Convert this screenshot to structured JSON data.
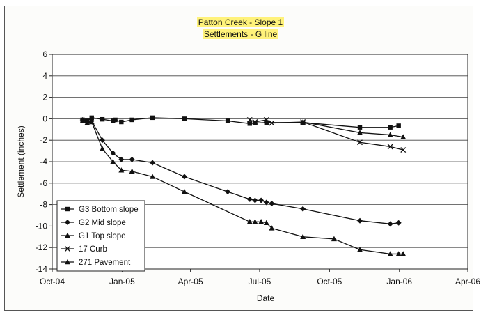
{
  "chart_data": {
    "type": "line",
    "title": "Patton Creek - Slope 1",
    "subtitle": "Settlements - G line",
    "xlabel": "Date",
    "ylabel": "Settlement (inches)",
    "x_ticks": [
      "Oct-04",
      "Jan-05",
      "Apr-05",
      "Jul-05",
      "Oct-05",
      "Jan-06",
      "Apr-06"
    ],
    "x_range": [
      "2004-10-01",
      "2006-04-01"
    ],
    "ylim": [
      -14,
      6
    ],
    "y_ticks": [
      6,
      4,
      2,
      0,
      -2,
      -4,
      -6,
      -8,
      -10,
      -12,
      -14
    ],
    "grid": "horizontal",
    "legend_position": "bottom-left",
    "series": [
      {
        "name": "G3 Bottom slope",
        "marker": "square",
        "x": [
          "2004-11-10",
          "2004-11-16",
          "2004-11-22",
          "2004-12-06",
          "2004-12-20",
          "2004-12-23",
          "2004-12-31",
          "2005-01-14",
          "2005-02-10",
          "2005-03-24",
          "2005-05-20",
          "2005-06-18",
          "2005-06-25",
          "2005-07-10",
          "2005-08-27",
          "2005-11-10",
          "2005-12-20",
          "2005-12-31"
        ],
        "values": [
          -0.1,
          -0.2,
          0.1,
          -0.05,
          -0.2,
          -0.1,
          -0.3,
          -0.1,
          0.1,
          0.0,
          -0.2,
          -0.45,
          -0.4,
          -0.35,
          -0.35,
          -0.8,
          -0.8,
          -0.65
        ]
      },
      {
        "name": "G2 Mid slope",
        "marker": "diamond",
        "x": [
          "2004-11-10",
          "2004-11-16",
          "2004-11-22",
          "2004-12-06",
          "2004-12-20",
          "2004-12-31",
          "2005-01-14",
          "2005-02-10",
          "2005-03-24",
          "2005-05-20",
          "2005-06-18",
          "2005-06-25",
          "2005-07-03",
          "2005-07-10",
          "2005-07-17",
          "2005-08-27",
          "2005-11-10",
          "2005-12-20",
          "2005-12-31"
        ],
        "values": [
          -0.1,
          -0.3,
          -0.2,
          -2.0,
          -3.2,
          -3.8,
          -3.8,
          -4.1,
          -5.4,
          -6.8,
          -7.5,
          -7.6,
          -7.6,
          -7.8,
          -7.9,
          -8.4,
          -9.5,
          -9.8,
          -9.7
        ]
      },
      {
        "name": "G1 Top slope",
        "marker": "triangle",
        "x": [
          "2004-11-10",
          "2004-11-16",
          "2004-11-22",
          "2004-12-06",
          "2004-12-20",
          "2004-12-31",
          "2005-01-14",
          "2005-02-10",
          "2005-03-24",
          "2005-06-18",
          "2005-06-25",
          "2005-07-03",
          "2005-07-10",
          "2005-07-17",
          "2005-08-27",
          "2005-10-07",
          "2005-11-10",
          "2005-12-20",
          "2005-12-31",
          "2006-01-06"
        ],
        "values": [
          -0.2,
          -0.4,
          -0.3,
          -2.8,
          -4.0,
          -4.8,
          -4.9,
          -5.4,
          -6.8,
          -9.6,
          -9.6,
          -9.6,
          -9.7,
          -10.2,
          -11.0,
          -11.2,
          -12.2,
          -12.6,
          -12.6,
          -12.6
        ]
      },
      {
        "name": "17 Curb",
        "marker": "x",
        "x": [
          "2005-06-18",
          "2005-06-25",
          "2005-07-10",
          "2005-07-17",
          "2005-08-27",
          "2005-11-10",
          "2005-12-20",
          "2006-01-06"
        ],
        "values": [
          -0.1,
          -0.3,
          -0.1,
          -0.4,
          -0.3,
          -2.2,
          -2.6,
          -2.9
        ]
      },
      {
        "name": "271 Pavement",
        "marker": "triangle",
        "x": [
          "2005-08-27",
          "2005-11-10",
          "2005-12-20",
          "2006-01-06"
        ],
        "values": [
          -0.3,
          -1.3,
          -1.5,
          -1.7
        ]
      }
    ]
  }
}
